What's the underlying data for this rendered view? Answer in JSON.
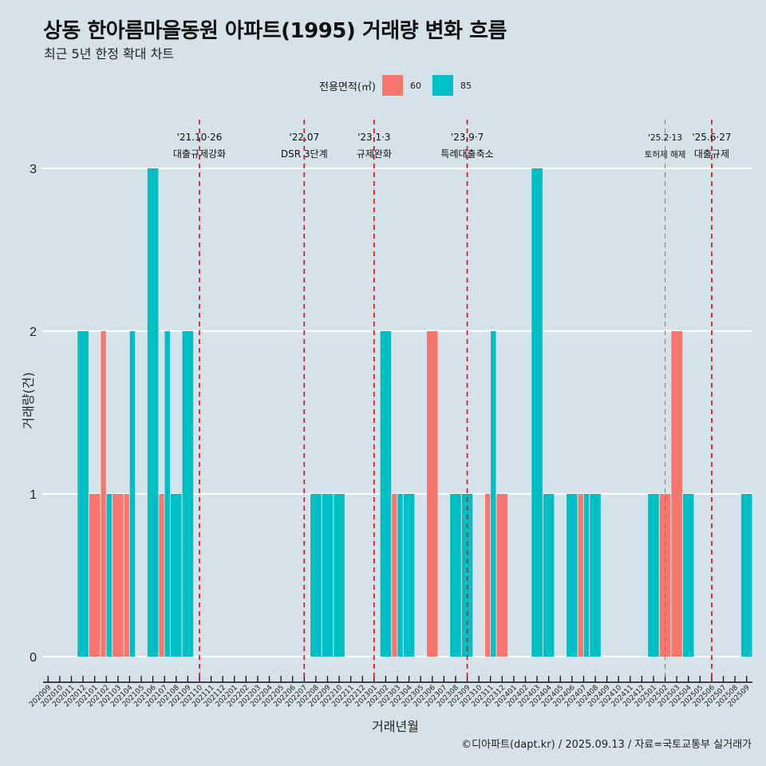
{
  "title": "상동 한아름마을동원 아파트(1995) 거래량 변화 흐름",
  "subtitle": "최근 5년 한정 확대 차트",
  "caption": "©디아파트(dapt.kr) / 2025.09.13 / 자료=국토교통부 실거래가",
  "chart_data": {
    "type": "bar",
    "title": "상동 한아름마을동원 아파트(1995) 거래량 변화 흐름",
    "subtitle": "최근 5년 한정 확대 차트",
    "xlabel": "거래년월",
    "ylabel": "거래량(건)",
    "ylim": [
      0,
      3
    ],
    "yticks": [
      0,
      1,
      2,
      3
    ],
    "grid": true,
    "legend": {
      "title": "전용면적(㎡)",
      "position": "top",
      "entries": [
        "60",
        "85"
      ]
    },
    "colors": {
      "60": "#F8766D",
      "85": "#00BFC4"
    },
    "categories": [
      "202009",
      "202010",
      "202011",
      "202012",
      "202101",
      "202102",
      "202103",
      "202104",
      "202105",
      "202106",
      "202107",
      "202108",
      "202109",
      "202110",
      "202111",
      "202112",
      "202201",
      "202202",
      "202203",
      "202204",
      "202205",
      "202206",
      "202207",
      "202208",
      "202209",
      "202210",
      "202211",
      "202212",
      "202301",
      "202302",
      "202303",
      "202304",
      "202305",
      "202306",
      "202307",
      "202308",
      "202309",
      "202310",
      "202311",
      "202312",
      "202401",
      "202402",
      "202403",
      "202404",
      "202405",
      "202406",
      "202407",
      "202408",
      "202409",
      "202410",
      "202411",
      "202412",
      "202501",
      "202502",
      "202503",
      "202504",
      "202505",
      "202506",
      "202507",
      "202508",
      "202509"
    ],
    "series": [
      {
        "name": "60",
        "values": {
          "202101": 1,
          "202102": 2,
          "202103": 1,
          "202104": 1,
          "202107": 1,
          "202303": 1,
          "202306": 2,
          "202311": 1,
          "202312": 1,
          "202407": 1,
          "202502": 1,
          "202503": 2
        }
      },
      {
        "name": "85",
        "values": {
          "202012": 2,
          "202102": 1,
          "202104": 2,
          "202106": 3,
          "202107": 2,
          "202108": 1,
          "202109": 2,
          "202208": 1,
          "202209": 1,
          "202210": 1,
          "202302": 2,
          "202303": 1,
          "202304": 1,
          "202308": 1,
          "202309": 1,
          "202311": 2,
          "202403": 3,
          "202404": 1,
          "202406": 1,
          "202407": 1,
          "202408": 1,
          "202501": 1,
          "202504": 1,
          "202509": 1
        }
      }
    ],
    "annotations": [
      {
        "month": "202110",
        "date": "'21.10·26",
        "label": "대출규제강화",
        "style": "bold"
      },
      {
        "month": "202207",
        "date": "'22.07",
        "label": "DSR 3단계",
        "style": "bold"
      },
      {
        "month": "202301",
        "date": "'23.1·3",
        "label": "규제완화",
        "style": "bold"
      },
      {
        "month": "202309",
        "date": "'23.9·7",
        "label": "특례대출축소",
        "style": "bold"
      },
      {
        "month": "202502",
        "date": "'25.2·13",
        "label": "토허제 해제",
        "style": "light"
      },
      {
        "month": "202506",
        "date": "'25.6·27",
        "label": "대출규제",
        "style": "bold"
      }
    ]
  }
}
